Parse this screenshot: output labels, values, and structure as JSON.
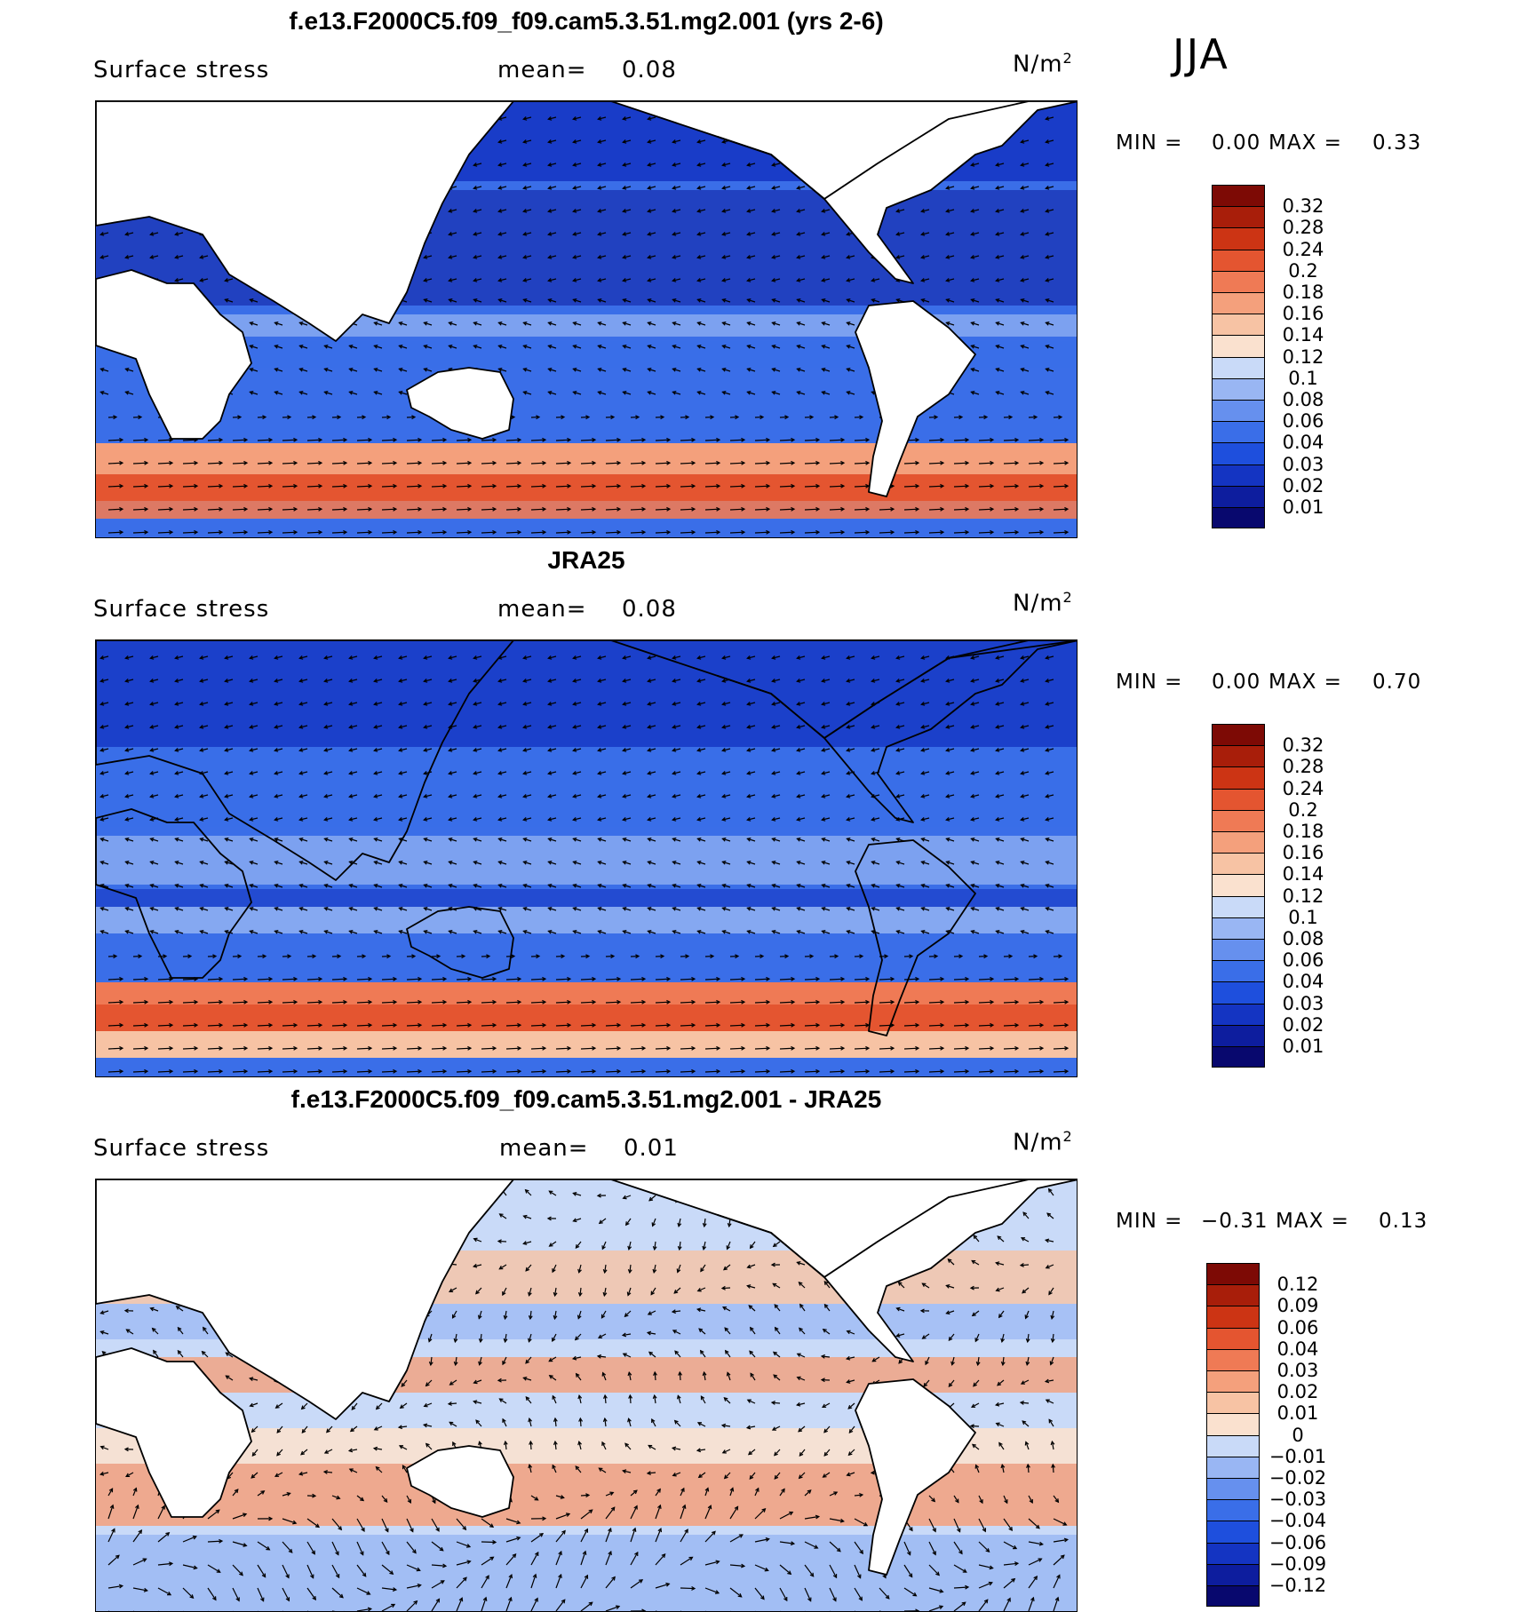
{
  "season": "JJA",
  "panels": [
    {
      "id": "model",
      "title": "f.e13.F2000C5.f09_f09.cam5.3.51.mg2.001 (yrs 2-6)",
      "variable": "Surface stress",
      "mean_label": "mean=",
      "mean_value": "0.08",
      "units_base": "N/m",
      "units_exp": "2",
      "min_label": "MIN =",
      "min_value": "0.00",
      "max_label": "MAX =",
      "max_value": "0.33",
      "colorbar_labels": [
        "0.32",
        "0.28",
        "0.24",
        "0.2",
        "0.18",
        "0.16",
        "0.14",
        "0.12",
        "0.1",
        "0.08",
        "0.06",
        "0.04",
        "0.03",
        "0.02",
        "0.01"
      ]
    },
    {
      "id": "obs",
      "title": "JRA25",
      "variable": "Surface stress",
      "mean_label": "mean=",
      "mean_value": "0.08",
      "units_base": "N/m",
      "units_exp": "2",
      "min_label": "MIN =",
      "min_value": "0.00",
      "max_label": "MAX =",
      "max_value": "0.70",
      "colorbar_labels": [
        "0.32",
        "0.28",
        "0.24",
        "0.2",
        "0.18",
        "0.16",
        "0.14",
        "0.12",
        "0.1",
        "0.08",
        "0.06",
        "0.04",
        "0.03",
        "0.02",
        "0.01"
      ]
    },
    {
      "id": "diff",
      "title": "f.e13.F2000C5.f09_f09.cam5.3.51.mg2.001 - JRA25",
      "variable": "Surface stress",
      "mean_label": "mean=",
      "mean_value": "0.01",
      "units_base": "N/m",
      "units_exp": "2",
      "min_label": "MIN =",
      "min_value": "−0.31",
      "max_label": "MAX =",
      "max_value": "0.13",
      "colorbar_labels": [
        "0.12",
        "0.09",
        "0.06",
        "0.04",
        "0.03",
        "0.02",
        "0.01",
        "0",
        "−0.01",
        "−0.02",
        "−0.03",
        "−0.04",
        "−0.06",
        "−0.09",
        "−0.12"
      ]
    }
  ],
  "chart_data": [
    {
      "type": "heatmap",
      "title": "f.e13.F2000C5.f09_f09.cam5.3.51.mg2.001 (yrs 2-6)",
      "variable": "Surface stress",
      "units": "N/m^2",
      "mean": 0.08,
      "min": 0.0,
      "max": 0.33,
      "levels": [
        0.01,
        0.02,
        0.03,
        0.04,
        0.06,
        0.08,
        0.1,
        0.12,
        0.14,
        0.16,
        0.18,
        0.2,
        0.24,
        0.28,
        0.32
      ],
      "colors": [
        "#08086e",
        "#0d1d9e",
        "#1434c2",
        "#1e4fdd",
        "#3a6ee8",
        "#6690ee",
        "#99b6f3",
        "#c9daf8",
        "#fae1cf",
        "#f7c3a4",
        "#f4a07c",
        "#ef7a55",
        "#e45530",
        "#cc3414",
        "#a81e0a",
        "#7d0a05"
      ],
      "fields": "stress magnitude with vector arrows"
    },
    {
      "type": "heatmap",
      "title": "JRA25",
      "variable": "Surface stress",
      "units": "N/m^2",
      "mean": 0.08,
      "min": 0.0,
      "max": 0.7,
      "levels": [
        0.01,
        0.02,
        0.03,
        0.04,
        0.06,
        0.08,
        0.1,
        0.12,
        0.14,
        0.16,
        0.18,
        0.2,
        0.24,
        0.28,
        0.32
      ],
      "colors": [
        "#08086e",
        "#0d1d9e",
        "#1434c2",
        "#1e4fdd",
        "#3a6ee8",
        "#6690ee",
        "#99b6f3",
        "#c9daf8",
        "#fae1cf",
        "#f7c3a4",
        "#f4a07c",
        "#ef7a55",
        "#e45530",
        "#cc3414",
        "#a81e0a",
        "#7d0a05"
      ],
      "fields": "stress magnitude with vector arrows"
    },
    {
      "type": "heatmap",
      "title": "f.e13.F2000C5.f09_f09.cam5.3.51.mg2.001 - JRA25",
      "variable": "Surface stress",
      "units": "N/m^2",
      "mean": 0.01,
      "min": -0.31,
      "max": 0.13,
      "levels": [
        -0.12,
        -0.09,
        -0.06,
        -0.04,
        -0.03,
        -0.02,
        -0.01,
        0,
        0.01,
        0.02,
        0.03,
        0.04,
        0.06,
        0.09,
        0.12
      ],
      "colors": [
        "#08086e",
        "#0d1d9e",
        "#1434c2",
        "#1e4fdd",
        "#3a6ee8",
        "#6690ee",
        "#99b6f3",
        "#c9daf8",
        "#fae1cf",
        "#f7c3a4",
        "#f4a07c",
        "#ef7a55",
        "#e45530",
        "#cc3414",
        "#a81e0a",
        "#7d0a05"
      ],
      "fields": "difference of stress magnitude with vector arrows"
    }
  ]
}
